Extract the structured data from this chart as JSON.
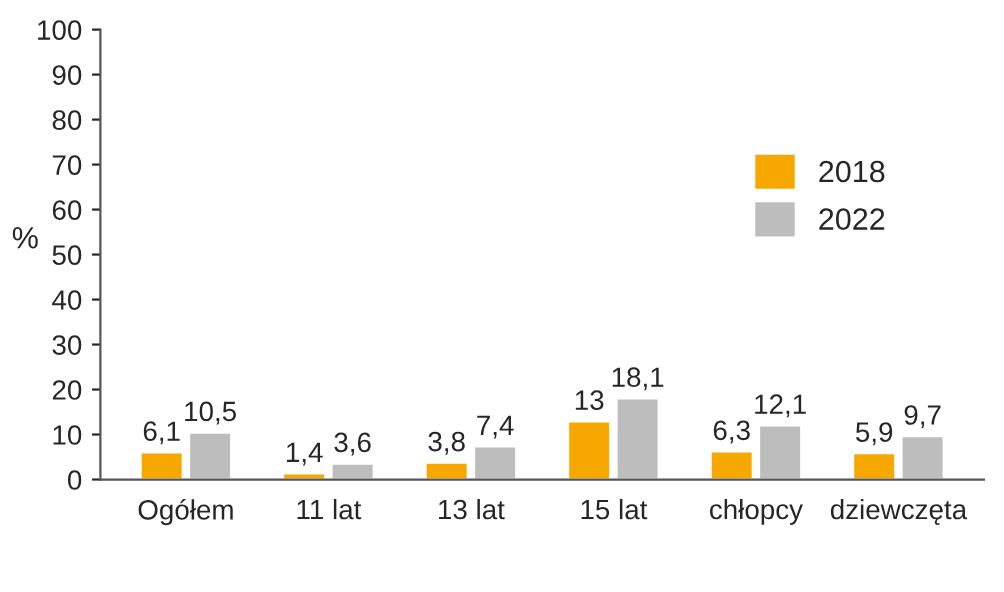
{
  "chart_data": {
    "type": "bar",
    "ylabel": "%",
    "categories": [
      "Ogółem",
      "11 lat",
      "13 lat",
      "15 lat",
      "chłopcy",
      "dziewczęta"
    ],
    "series": [
      {
        "name": "2018",
        "color": "#f7a800",
        "values": [
          6.1,
          1.4,
          3.8,
          13,
          6.3,
          5.9
        ],
        "value_labels": [
          "6,1",
          "1,4",
          "3,8",
          "13",
          "6,3",
          "5,9"
        ]
      },
      {
        "name": "2022",
        "color": "#bdbdbd",
        "values": [
          10.5,
          3.6,
          7.4,
          18.1,
          12.1,
          9.7
        ],
        "value_labels": [
          "10,5",
          "3,6",
          "7,4",
          "18,1",
          "12,1",
          "9,7"
        ]
      }
    ],
    "ylim": [
      0,
      100
    ],
    "yticks": [
      0,
      10,
      20,
      30,
      40,
      50,
      60,
      70,
      80,
      90,
      100
    ],
    "grid": false,
    "legend": "top right"
  }
}
